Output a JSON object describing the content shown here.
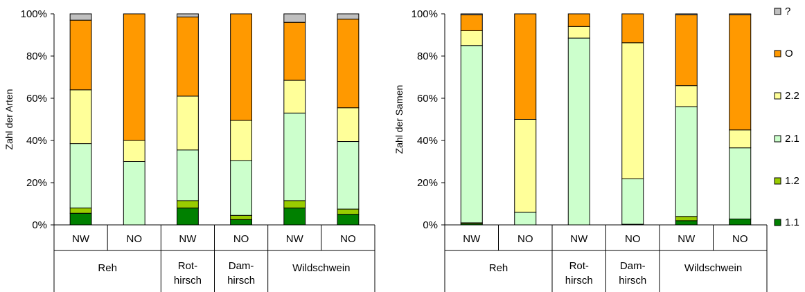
{
  "colors": {
    "?": "#c0c0c0",
    "O": "#ff9900",
    "2.2": "#ffff99",
    "2.1": "#ccffcc",
    "1.2": "#99cc00",
    "1.1": "#008000"
  },
  "legend": [
    "?",
    "O",
    "2.2",
    "2.1",
    "1.2",
    "1.1"
  ],
  "chart_data": [
    {
      "type": "bar",
      "stacked": true,
      "percent": true,
      "ylabel": "Zahl der Arten",
      "ylim": [
        0,
        100
      ],
      "yticks": [
        "0%",
        "20%",
        "40%",
        "60%",
        "80%",
        "100%"
      ],
      "categories": [
        "NW",
        "NO",
        "NW",
        "NO",
        "NW",
        "NO"
      ],
      "groups": [
        {
          "label": [
            "Reh"
          ],
          "span": [
            0,
            1
          ]
        },
        {
          "label": [
            "Rot-",
            "hirsch"
          ],
          "span": [
            2,
            2
          ]
        },
        {
          "label": [
            "Dam-",
            "hirsch"
          ],
          "span": [
            3,
            3
          ]
        },
        {
          "label": [
            "Wildschwein"
          ],
          "span": [
            4,
            5
          ]
        }
      ],
      "series": [
        {
          "name": "1.1",
          "values": [
            5.5,
            0,
            8,
            2.5,
            8,
            5
          ]
        },
        {
          "name": "1.2",
          "values": [
            2.5,
            0,
            3.5,
            2,
            3.5,
            2.5
          ]
        },
        {
          "name": "2.1",
          "values": [
            30.5,
            30,
            24,
            26,
            41.5,
            32
          ]
        },
        {
          "name": "2.2",
          "values": [
            25.5,
            10,
            25.5,
            19,
            15.5,
            16
          ]
        },
        {
          "name": "O",
          "values": [
            33,
            60,
            37.5,
            50.5,
            27.5,
            42
          ]
        },
        {
          "name": "?",
          "values": [
            3,
            0,
            1.5,
            0,
            4,
            2.5
          ]
        }
      ]
    },
    {
      "type": "bar",
      "stacked": true,
      "percent": true,
      "ylabel": "Zahl der Samen",
      "ylim": [
        0,
        100
      ],
      "yticks": [
        "0%",
        "20%",
        "40%",
        "60%",
        "80%",
        "100%"
      ],
      "categories": [
        "NW",
        "NO",
        "NW",
        "NO",
        "NW",
        "NO"
      ],
      "groups": [
        {
          "label": [
            "Reh"
          ],
          "span": [
            0,
            1
          ]
        },
        {
          "label": [
            "Rot-",
            "hirsch"
          ],
          "span": [
            2,
            2
          ]
        },
        {
          "label": [
            "Dam-",
            "hirsch"
          ],
          "span": [
            3,
            3
          ]
        },
        {
          "label": [
            "Wildschwein"
          ],
          "span": [
            4,
            5
          ]
        }
      ],
      "series": [
        {
          "name": "1.1",
          "values": [
            0.5,
            0,
            0,
            0.3,
            2,
            2.8
          ]
        },
        {
          "name": "1.2",
          "values": [
            0.5,
            0,
            0,
            0,
            2,
            0
          ]
        },
        {
          "name": "2.1",
          "values": [
            84,
            6,
            88.5,
            21.5,
            52,
            33.7
          ]
        },
        {
          "name": "2.2",
          "values": [
            7,
            44,
            5.5,
            64.5,
            10,
            8.5
          ]
        },
        {
          "name": "O",
          "values": [
            7.5,
            50,
            6,
            13.7,
            33.5,
            54.5
          ]
        },
        {
          "name": "?",
          "values": [
            0.5,
            0,
            0,
            0,
            0.5,
            0.5
          ]
        }
      ]
    }
  ]
}
